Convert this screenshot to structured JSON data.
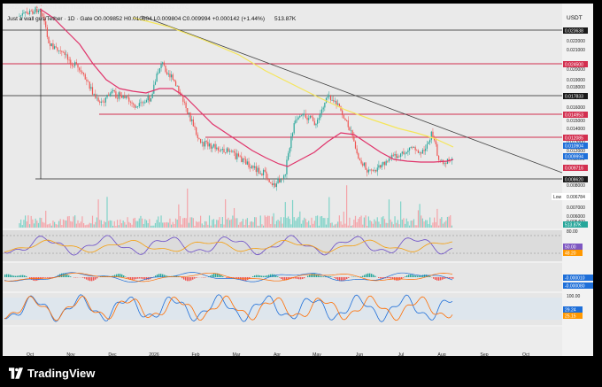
{
  "header": {
    "caption": "DieZitrone created with TradingView.com, Aug 08, 2026 01:52 UTC"
  },
  "chart_title": {
    "symbol": "Just a wall gus/Tether · 1D · Gate",
    "ohlc": "O0.009852 H0.010604 L0.009804 C0.009994 +0.000142 (+1.44%)",
    "volume": "513.87K"
  },
  "currency_label": "USDT",
  "chart_data": {
    "type": "candlestick",
    "price_axis_labels": [
      "0.023000",
      "0.022000",
      "0.021000",
      "0.020000",
      "0.019000",
      "0.018000",
      "0.017000",
      "0.016000",
      "0.015000",
      "0.014000",
      "0.013000",
      "0.012000",
      "0.011000",
      "0.010000",
      "0.009000",
      "0.008000",
      "0.007500",
      "0.007000",
      "0.006000",
      "0.005400"
    ],
    "x_labels": [
      "Oct",
      "Nov",
      "Dec",
      "2026",
      "Feb",
      "Mar",
      "Apr",
      "May",
      "Jun",
      "Jul",
      "Aug",
      "Sep",
      "Oct"
    ],
    "price_tags": [
      {
        "value": "0.023638",
        "color": "#1a1a1a"
      },
      {
        "value": "0.024500",
        "color": "#d32f4f"
      },
      {
        "value": "0.017833",
        "color": "#1a1a1a"
      },
      {
        "value": "0.014953",
        "color": "#d32f4f"
      },
      {
        "value": "0.012085",
        "color": "#d32f4f"
      },
      {
        "value": "0.010904",
        "color": "#1e6fd9"
      },
      {
        "value": "0.009994",
        "color": "#1e6fd9"
      },
      {
        "value": "0.009716",
        "color": "#d32f4f"
      },
      {
        "value": "0.008620",
        "color": "#1a1a1a"
      }
    ],
    "low_label": "Low",
    "low_value": "0.006784",
    "volume_tag": "513.87K",
    "rsi_labels": [
      "80.00",
      "50.00",
      "48.20"
    ],
    "rsi_tags": [
      {
        "value": "50.00",
        "color": "#7e57c2"
      },
      {
        "value": "48.20",
        "color": "#ff9800"
      }
    ],
    "macd_tags": [
      {
        "value": "-0.000010",
        "color": "#1e6fd9"
      },
      {
        "value": "-0.000080",
        "color": "#1e6fd9"
      }
    ],
    "stoch_labels": [
      "100.00",
      "20.00"
    ],
    "stoch_tags": [
      {
        "value": "29.24",
        "color": "#1e6fd9"
      },
      {
        "value": "25.15",
        "color": "#ff9800"
      }
    ],
    "colors": {
      "up": "#26a69a",
      "down": "#ef5350",
      "ma_red": "#e91e63",
      "ma_yellow": "#ffeb3b",
      "trend": "#444444"
    }
  },
  "footer": {
    "brand": "TradingView"
  }
}
